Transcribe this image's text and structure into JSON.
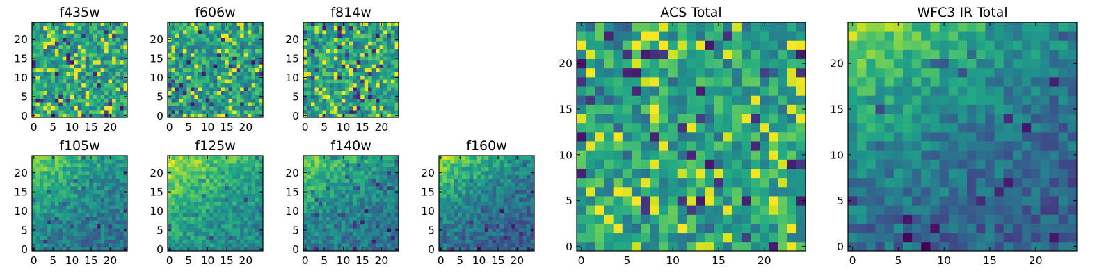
{
  "chart_data": {
    "type": "heatmap",
    "colormap": "viridis",
    "grid_size": [
      25,
      25
    ],
    "panels": [
      {
        "id": "f435w",
        "title": "f435w",
        "xlim": [
          0,
          24
        ],
        "ylim": [
          0,
          24
        ],
        "xticks": [
          "0",
          "5",
          "10",
          "15",
          "20"
        ],
        "yticks": [
          "0",
          "5",
          "10",
          "15",
          "20"
        ],
        "seed": 11,
        "pattern": "noise-bright"
      },
      {
        "id": "f606w",
        "title": "f606w",
        "xlim": [
          0,
          24
        ],
        "ylim": [
          0,
          24
        ],
        "xticks": [
          "0",
          "5",
          "10",
          "15",
          "20"
        ],
        "yticks": [
          "0",
          "5",
          "10",
          "15",
          "20"
        ],
        "seed": 23,
        "pattern": "noise-bright"
      },
      {
        "id": "f814w",
        "title": "f814w",
        "xlim": [
          0,
          24
        ],
        "ylim": [
          0,
          24
        ],
        "xticks": [
          "0",
          "5",
          "10",
          "15",
          "20"
        ],
        "yticks": [
          "0",
          "5",
          "10",
          "15",
          "20"
        ],
        "seed": 37,
        "pattern": "noise-bright"
      },
      {
        "id": "f105w",
        "title": "f105w",
        "xlim": [
          0,
          24
        ],
        "ylim": [
          0,
          24
        ],
        "xticks": [
          "0",
          "5",
          "10",
          "15",
          "20"
        ],
        "yticks": [
          "0",
          "5",
          "10",
          "15",
          "20"
        ],
        "seed": 41,
        "pattern": "gradient-mid"
      },
      {
        "id": "f125w",
        "title": "f125w",
        "xlim": [
          0,
          24
        ],
        "ylim": [
          0,
          24
        ],
        "xticks": [
          "0",
          "5",
          "10",
          "15",
          "20"
        ],
        "yticks": [
          "0",
          "5",
          "10",
          "15",
          "20"
        ],
        "seed": 53,
        "pattern": "gradient-bright"
      },
      {
        "id": "f140w",
        "title": "f140w",
        "xlim": [
          0,
          24
        ],
        "ylim": [
          0,
          24
        ],
        "xticks": [
          "0",
          "5",
          "10",
          "15",
          "20"
        ],
        "yticks": [
          "0",
          "5",
          "10",
          "15",
          "20"
        ],
        "seed": 67,
        "pattern": "gradient-mid"
      },
      {
        "id": "f160w",
        "title": "f160w",
        "xlim": [
          0,
          24
        ],
        "ylim": [
          0,
          24
        ],
        "xticks": [
          "0",
          "5",
          "10",
          "15",
          "20"
        ],
        "yticks": [
          "0",
          "5",
          "10",
          "15",
          "20"
        ],
        "seed": 79,
        "pattern": "gradient-dark"
      },
      {
        "id": "acs-total",
        "title": "ACS Total",
        "xlim": [
          0,
          24
        ],
        "ylim": [
          0,
          24
        ],
        "xticks": [
          "0",
          "5",
          "10",
          "15",
          "20"
        ],
        "yticks": [
          "0",
          "5",
          "10",
          "15",
          "20"
        ],
        "seed": 97,
        "pattern": "noise-bright"
      },
      {
        "id": "wfc3-ir-total",
        "title": "WFC3 IR Total",
        "xlim": [
          0,
          24
        ],
        "ylim": [
          0,
          24
        ],
        "xticks": [
          "0",
          "5",
          "10",
          "15",
          "20"
        ],
        "yticks": [
          "0",
          "5",
          "10",
          "15",
          "20"
        ],
        "seed": 113,
        "pattern": "gradient-dark"
      }
    ]
  }
}
